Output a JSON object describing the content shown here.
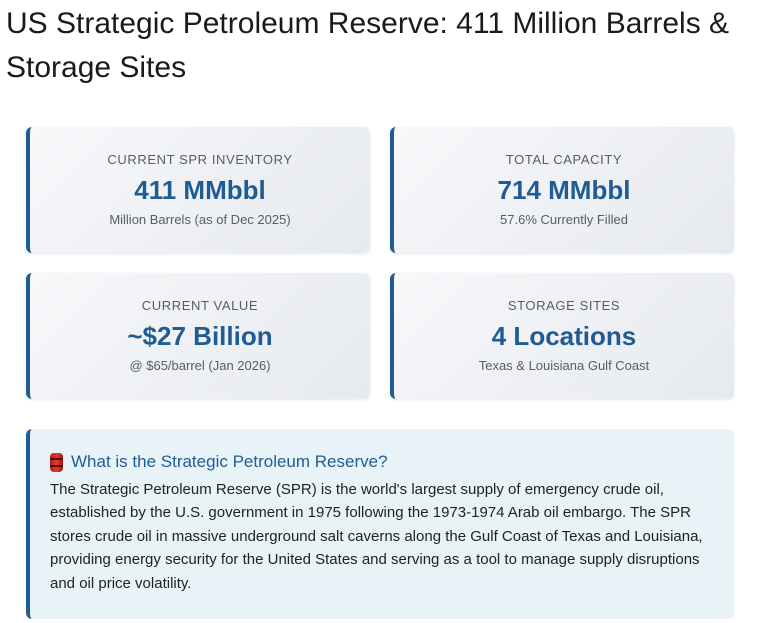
{
  "page": {
    "title": "US Strategic Petroleum Reserve: 411 Million Barrels & Storage Sites"
  },
  "stats": [
    {
      "label": "CURRENT SPR INVENTORY",
      "value": "411 MMbbl",
      "sub": "Million Barrels (as of Dec 2025)"
    },
    {
      "label": "TOTAL CAPACITY",
      "value": "714 MMbbl",
      "sub": "57.6% Currently Filled"
    },
    {
      "label": "CURRENT VALUE",
      "value": "~$27 Billion",
      "sub": "@ $65/barrel (Jan 2026)"
    },
    {
      "label": "STORAGE SITES",
      "value": "4 Locations",
      "sub": "Texas & Louisiana Gulf Coast"
    }
  ],
  "info": {
    "icon": "oil-barrel-icon",
    "heading": "What is the Strategic Petroleum Reserve?",
    "body": "The Strategic Petroleum Reserve (SPR) is the world's largest supply of emergency crude oil, established by the U.S. government in 1975 following the 1973-1974 Arab oil embargo. The SPR stores crude oil in massive underground salt caverns along the Gulf Coast of Texas and Louisiana, providing energy security for the United States and serving as a tool to manage supply disruptions and oil price volatility."
  },
  "colors": {
    "accent": "#1f5c94",
    "info_background": "#e8f3f8",
    "barrel_red": "#e23a2c"
  }
}
